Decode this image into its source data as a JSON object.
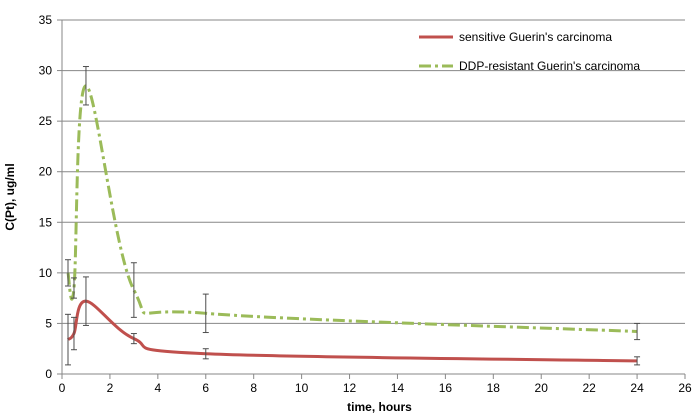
{
  "chart_data": {
    "type": "line",
    "xlabel": "time, hours",
    "ylabel": "C(Pt), ug/ml",
    "xlim": [
      0,
      26
    ],
    "ylim": [
      0,
      35
    ],
    "x_ticks": [
      0,
      2,
      4,
      6,
      8,
      10,
      12,
      14,
      16,
      18,
      20,
      22,
      24,
      26
    ],
    "y_ticks": [
      0,
      5,
      10,
      15,
      20,
      25,
      30,
      35
    ],
    "grid": "horizontal",
    "legend_position": "top-right",
    "series": [
      {
        "name": "sensitive Guerin's carcinoma",
        "color": "#c0504d",
        "style": "solid",
        "x": [
          0.25,
          0.5,
          1,
          3,
          6,
          24
        ],
        "y": [
          3.4,
          4.0,
          7.2,
          3.5,
          2.0,
          1.3
        ],
        "err": [
          2.5,
          1.6,
          2.4,
          0.5,
          0.5,
          0.4
        ]
      },
      {
        "name": "DDP-resistant Guerin's carcinoma",
        "color": "#9bbb59",
        "style": "dash-dot",
        "x": [
          0.25,
          0.5,
          1,
          3,
          6,
          24
        ],
        "y": [
          10.0,
          8.5,
          28.5,
          8.3,
          6.0,
          4.2
        ],
        "err": [
          1.3,
          1.0,
          1.9,
          2.7,
          1.9,
          0.8
        ]
      }
    ]
  }
}
